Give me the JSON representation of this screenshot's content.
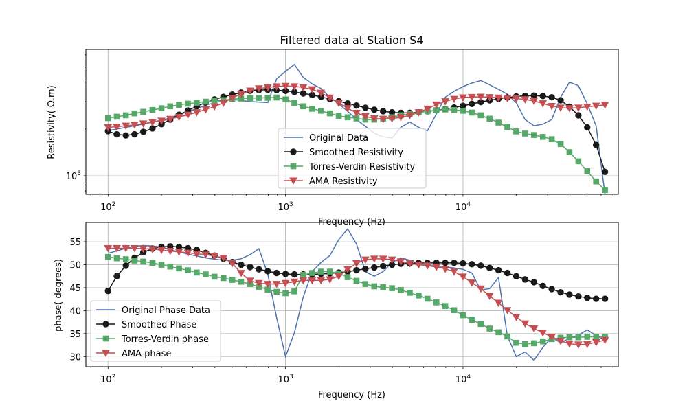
{
  "chart_data": [
    {
      "type": "line",
      "title": "Filtered data at Station S4",
      "xlabel": "Frequency (Hz)",
      "ylabel": "Resistivity( Ω.m)",
      "xscale": "log",
      "yscale": "log",
      "xlim": [
        75,
        75000
      ],
      "ylim": [
        760,
        6500
      ],
      "xticks": [
        {
          "label": "10",
          "exp": "2",
          "value": 100
        },
        {
          "label": "10",
          "exp": "3",
          "value": 1000
        },
        {
          "label": "10",
          "exp": "4",
          "value": 10000
        }
      ],
      "yticks": [
        {
          "label": "10",
          "exp": "3",
          "value": 1000
        }
      ],
      "grid": true,
      "legend_position": "lower center",
      "series": [
        {
          "name": "Original Data",
          "color": "#4c72b0",
          "marker": "none",
          "x": [
            100,
            112,
            126,
            141,
            158,
            178,
            200,
            224,
            251,
            282,
            316,
            355,
            398,
            447,
            501,
            562,
            631,
            708,
            794,
            891,
            1000,
            1122,
            1259,
            1413,
            1585,
            1778,
            1995,
            2239,
            2512,
            2818,
            3162,
            3548,
            3981,
            4467,
            5012,
            5623,
            6310,
            7079,
            7943,
            8913,
            10000,
            11220,
            12589,
            14125,
            15849,
            17783,
            19953,
            22387,
            25119,
            28184,
            31623,
            35481,
            39811,
            44668,
            50119,
            56234,
            63096
          ],
          "y": [
            1950,
            2000,
            2050,
            2100,
            2150,
            2220,
            2280,
            2350,
            2480,
            2580,
            2700,
            2850,
            2950,
            3050,
            3100,
            3050,
            3000,
            2980,
            2960,
            4200,
            4700,
            5200,
            4300,
            3900,
            3650,
            3200,
            2900,
            2600,
            2300,
            2080,
            1880,
            1780,
            1750,
            2050,
            2220,
            2050,
            1950,
            2500,
            3200,
            3500,
            3750,
            3950,
            4100,
            3850,
            3600,
            3350,
            2950,
            2300,
            2100,
            2150,
            2300,
            3200,
            4000,
            3800,
            2900,
            2100,
            760
          ]
        },
        {
          "name": "Smoothed Resistivity",
          "color": "#1a1a1a",
          "marker": "circle",
          "x": [
            100,
            112,
            126,
            141,
            158,
            178,
            200,
            224,
            251,
            282,
            316,
            355,
            398,
            447,
            501,
            562,
            631,
            708,
            794,
            891,
            1000,
            1122,
            1259,
            1413,
            1585,
            1778,
            1995,
            2239,
            2512,
            2818,
            3162,
            3548,
            3981,
            4467,
            5012,
            5623,
            6310,
            7079,
            7943,
            8913,
            10000,
            11220,
            12589,
            14125,
            15849,
            17783,
            19953,
            22387,
            25119,
            28184,
            31623,
            35481,
            39811,
            44668,
            50119,
            56234,
            63096
          ],
          "y": [
            1940,
            1850,
            1820,
            1850,
            1920,
            2020,
            2150,
            2300,
            2470,
            2630,
            2800,
            2960,
            3100,
            3220,
            3330,
            3430,
            3520,
            3560,
            3580,
            3560,
            3520,
            3460,
            3390,
            3310,
            3220,
            3120,
            3020,
            2920,
            2830,
            2740,
            2660,
            2600,
            2560,
            2540,
            2540,
            2560,
            2600,
            2640,
            2690,
            2750,
            2820,
            2900,
            2980,
            3060,
            3130,
            3190,
            3240,
            3270,
            3280,
            3260,
            3200,
            3060,
            2780,
            2450,
            2050,
            1580,
            1060
          ]
        },
        {
          "name": "Torres-Verdin Resistivity",
          "color": "#55a868",
          "marker": "square",
          "x": [
            100,
            112,
            126,
            141,
            158,
            178,
            200,
            224,
            251,
            282,
            316,
            355,
            398,
            447,
            501,
            562,
            631,
            708,
            794,
            891,
            1000,
            1122,
            1259,
            1413,
            1585,
            1778,
            1995,
            2239,
            2512,
            2818,
            3162,
            3548,
            3981,
            4467,
            5012,
            5623,
            6310,
            7079,
            7943,
            8913,
            10000,
            11220,
            12589,
            14125,
            15849,
            17783,
            19953,
            22387,
            25119,
            28184,
            31623,
            35481,
            39811,
            44668,
            50119,
            56234,
            63096
          ],
          "y": [
            2350,
            2400,
            2450,
            2520,
            2580,
            2650,
            2720,
            2800,
            2860,
            2910,
            2950,
            3000,
            3040,
            3070,
            3110,
            3140,
            3160,
            3170,
            3180,
            3190,
            3100,
            2950,
            2800,
            2700,
            2620,
            2520,
            2430,
            2380,
            2340,
            2300,
            2300,
            2330,
            2380,
            2450,
            2500,
            2560,
            2600,
            2640,
            2670,
            2650,
            2620,
            2550,
            2450,
            2330,
            2200,
            2060,
            1930,
            1870,
            1830,
            1780,
            1720,
            1600,
            1420,
            1240,
            1070,
            920,
            810
          ]
        },
        {
          "name": "AMA Resistivity",
          "color": "#c44e52",
          "marker": "triangle-down",
          "x": [
            100,
            112,
            126,
            141,
            158,
            178,
            200,
            224,
            251,
            282,
            316,
            355,
            398,
            447,
            501,
            562,
            631,
            708,
            794,
            891,
            1000,
            1122,
            1259,
            1413,
            1585,
            1778,
            1995,
            2239,
            2512,
            2818,
            3162,
            3548,
            3981,
            4467,
            5012,
            5623,
            6310,
            7079,
            7943,
            8913,
            10000,
            11220,
            12589,
            14125,
            15849,
            17783,
            19953,
            22387,
            25119,
            28184,
            31623,
            35481,
            39811,
            44668,
            50119,
            56234,
            63096
          ],
          "y": [
            2050,
            2070,
            2100,
            2130,
            2170,
            2210,
            2260,
            2320,
            2390,
            2470,
            2560,
            2670,
            2790,
            2950,
            3170,
            3360,
            3530,
            3650,
            3700,
            3760,
            3780,
            3760,
            3700,
            3600,
            3420,
            3180,
            2940,
            2720,
            2540,
            2410,
            2340,
            2320,
            2330,
            2380,
            2450,
            2560,
            2700,
            2870,
            3010,
            3120,
            3190,
            3210,
            3220,
            3200,
            3180,
            3160,
            3140,
            3100,
            3030,
            2920,
            2810,
            2740,
            2720,
            2740,
            2780,
            2820,
            2860
          ]
        }
      ]
    },
    {
      "type": "line",
      "title": "",
      "xlabel": "Frequency (Hz)",
      "ylabel": "phase( degrees)",
      "xscale": "log",
      "yscale": "linear",
      "xlim": [
        75,
        75000
      ],
      "ylim": [
        27.8,
        59.2
      ],
      "xticks": [
        {
          "label": "10",
          "exp": "2",
          "value": 100
        },
        {
          "label": "10",
          "exp": "3",
          "value": 1000
        },
        {
          "label": "10",
          "exp": "4",
          "value": 10000
        }
      ],
      "yticks": [
        30,
        35,
        40,
        45,
        50,
        55
      ],
      "grid": true,
      "legend_position": "lower left",
      "series": [
        {
          "name": "Original Phase Data",
          "color": "#4c72b0",
          "marker": "none",
          "x": [
            100,
            112,
            126,
            141,
            158,
            178,
            200,
            224,
            251,
            282,
            316,
            355,
            398,
            447,
            501,
            562,
            631,
            708,
            794,
            891,
            1000,
            1122,
            1259,
            1413,
            1585,
            1778,
            1995,
            2239,
            2512,
            2818,
            3162,
            3548,
            3981,
            4467,
            5012,
            5623,
            6310,
            7079,
            7943,
            8913,
            10000,
            11220,
            12589,
            14125,
            15849,
            17783,
            19953,
            22387,
            25119,
            28184,
            31623,
            35481,
            39811,
            44668,
            50119,
            56234,
            63096
          ],
          "y": [
            52.5,
            53,
            53.6,
            54,
            54.2,
            54.1,
            53.8,
            53.3,
            52.8,
            52.3,
            51.9,
            51.5,
            51.2,
            51,
            51,
            51.3,
            52.2,
            53.5,
            48,
            38.5,
            30,
            35.2,
            43,
            48.5,
            50.5,
            52,
            55.5,
            57.8,
            54.5,
            48.5,
            47.5,
            48.5,
            50.5,
            51.5,
            51,
            50.2,
            50.1,
            49.5,
            49.5,
            49.3,
            49,
            48.2,
            44.5,
            44.8,
            47.2,
            34.5,
            30,
            31,
            29.2,
            32,
            34.2,
            33,
            34,
            34.7,
            35.8,
            34.6,
            33.5
          ]
        },
        {
          "name": "Smoothed Phase",
          "color": "#1a1a1a",
          "marker": "circle",
          "x": [
            100,
            112,
            126,
            141,
            158,
            178,
            200,
            224,
            251,
            282,
            316,
            355,
            398,
            447,
            501,
            562,
            631,
            708,
            794,
            891,
            1000,
            1122,
            1259,
            1413,
            1585,
            1778,
            1995,
            2239,
            2512,
            2818,
            3162,
            3548,
            3981,
            4467,
            5012,
            5623,
            6310,
            7079,
            7943,
            8913,
            10000,
            11220,
            12589,
            14125,
            15849,
            17783,
            19953,
            22387,
            25119,
            28184,
            31623,
            35481,
            39811,
            44668,
            50119,
            56234,
            63096
          ],
          "y": [
            44.3,
            47.5,
            49.8,
            51.5,
            52.7,
            53.5,
            53.9,
            54,
            53.9,
            53.6,
            53.2,
            52.6,
            52,
            51.3,
            50.6,
            50,
            49.5,
            49,
            48.6,
            48.2,
            48,
            47.9,
            47.9,
            47.9,
            48,
            48.1,
            48.3,
            48.5,
            48.8,
            49.1,
            49.4,
            49.7,
            50,
            50.2,
            50.3,
            50.4,
            50.4,
            50.4,
            50.4,
            50.4,
            50.3,
            50.1,
            49.8,
            49.3,
            48.8,
            48.2,
            47.5,
            46.8,
            46.2,
            45.4,
            44.7,
            44,
            43.5,
            43.1,
            42.8,
            42.6,
            42.6
          ]
        },
        {
          "name": "Torres-Verdin phase",
          "color": "#55a868",
          "marker": "square",
          "x": [
            100,
            112,
            126,
            141,
            158,
            178,
            200,
            224,
            251,
            282,
            316,
            355,
            398,
            447,
            501,
            562,
            631,
            708,
            794,
            891,
            1000,
            1122,
            1259,
            1413,
            1585,
            1778,
            1995,
            2239,
            2512,
            2818,
            3162,
            3548,
            3981,
            4467,
            5012,
            5623,
            6310,
            7079,
            7943,
            8913,
            10000,
            11220,
            12589,
            14125,
            15849,
            17783,
            19953,
            22387,
            25119,
            28184,
            31623,
            35481,
            39811,
            44668,
            50119,
            56234,
            63096
          ],
          "y": [
            51.7,
            51.4,
            51.2,
            50.9,
            50.7,
            50.4,
            50,
            49.6,
            49.2,
            48.8,
            48.3,
            47.9,
            47.4,
            47.1,
            46.7,
            46.3,
            45.8,
            45.2,
            44.6,
            44.1,
            43.8,
            44.2,
            47.8,
            48.2,
            48.5,
            48.5,
            48.1,
            47.3,
            46.5,
            45.8,
            45.3,
            45.1,
            44.9,
            44.5,
            43.9,
            43.3,
            42.6,
            41.8,
            41,
            40.1,
            39,
            38,
            37.1,
            36.1,
            35.3,
            34.4,
            33,
            32.7,
            32.9,
            33.3,
            33.8,
            34.1,
            34.2,
            34.2,
            34.3,
            34.3,
            34.3
          ]
        },
        {
          "name": "AMA phase",
          "color": "#c44e52",
          "marker": "triangle-down",
          "x": [
            100,
            112,
            126,
            141,
            158,
            178,
            200,
            224,
            251,
            282,
            316,
            355,
            398,
            447,
            501,
            562,
            631,
            708,
            794,
            891,
            1000,
            1122,
            1259,
            1413,
            1585,
            1778,
            1995,
            2239,
            2512,
            2818,
            3162,
            3548,
            3981,
            4467,
            5012,
            5623,
            6310,
            7079,
            7943,
            8913,
            10000,
            11220,
            12589,
            14125,
            15849,
            17783,
            19953,
            22387,
            25119,
            28184,
            31623,
            35481,
            39811,
            44668,
            50119,
            56234,
            63096
          ],
          "y": [
            53.6,
            53.6,
            53.6,
            53.6,
            53.5,
            53.4,
            53.2,
            53,
            52.8,
            52.6,
            52.4,
            52.2,
            51.9,
            51.5,
            50.3,
            48.2,
            46.5,
            46,
            45.8,
            45.8,
            46,
            46.3,
            46.6,
            46.6,
            46.6,
            46.8,
            47.5,
            49,
            50.3,
            51.1,
            51.3,
            51.3,
            51.1,
            50.7,
            50.3,
            50,
            49.8,
            49.5,
            49.1,
            48.5,
            47.4,
            46.1,
            44.8,
            43.2,
            41.7,
            40.1,
            38.6,
            37.2,
            36.1,
            35.2,
            34.3,
            33.4,
            32.8,
            32.6,
            32.7,
            33.1,
            33.6
          ]
        }
      ]
    }
  ]
}
